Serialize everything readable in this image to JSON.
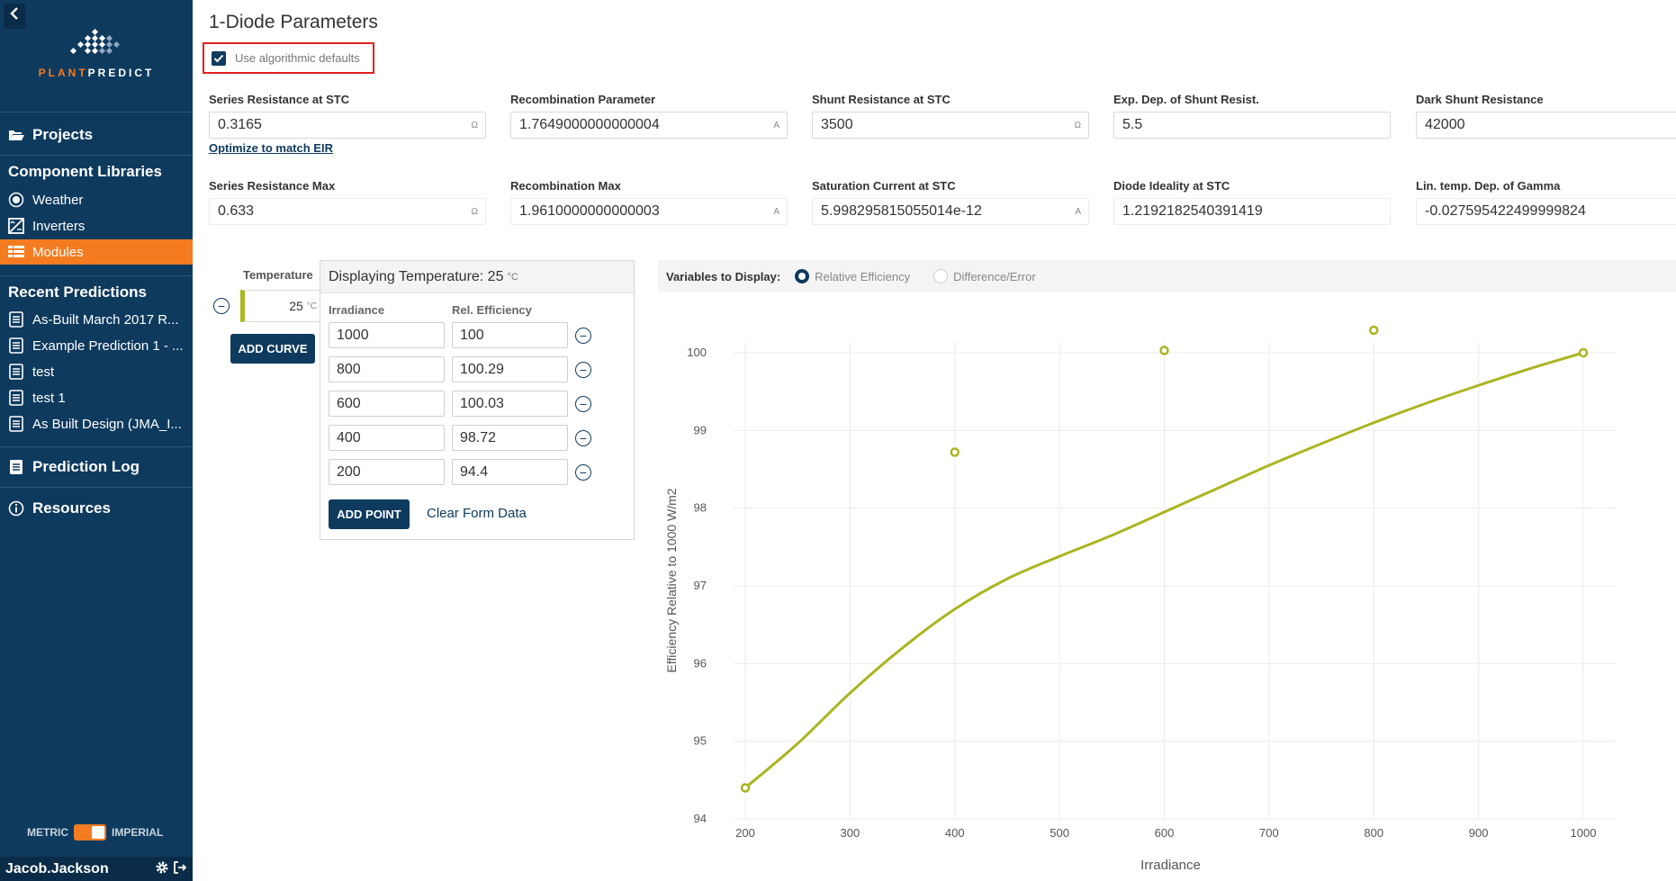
{
  "sidebar": {
    "brand": {
      "part1": "PLANT",
      "part2": "PREDICT"
    },
    "projects": "Projects",
    "component_libraries": "Component Libraries",
    "components": [
      {
        "label": "Weather",
        "icon": "sun-icon"
      },
      {
        "label": "Inverters",
        "icon": "inverter-icon"
      },
      {
        "label": "Modules",
        "icon": "module-grid-icon",
        "active": true
      }
    ],
    "recent_predictions_title": "Recent Predictions",
    "recent_predictions": [
      "As-Built March 2017 R...",
      "Example Prediction 1 - ...",
      "test",
      "test 1",
      "As Built Design (JMA_I..."
    ],
    "prediction_log": "Prediction Log",
    "resources": "Resources",
    "units": {
      "left": "METRIC",
      "right": "IMPERIAL"
    },
    "user": "Jacob.Jackson"
  },
  "main": {
    "title": "1-Diode Parameters",
    "defaults_checkbox": {
      "label": "Use algorithmic defaults",
      "checked": true
    },
    "optimize_link": "Optimize to match EIR",
    "params_row1": [
      {
        "label": "Series Resistance at STC",
        "value": "0.3165",
        "unit": "Ω"
      },
      {
        "label": "Recombination Parameter",
        "value": "1.7649000000000004",
        "unit": "A"
      },
      {
        "label": "Shunt Resistance at STC",
        "value": "3500",
        "unit": "Ω"
      },
      {
        "label": "Exp. Dep. of Shunt Resist.",
        "value": "5.5",
        "unit": ""
      },
      {
        "label": "Dark Shunt Resistance",
        "value": "42000",
        "unit": ""
      }
    ],
    "params_row2": [
      {
        "label": "Series Resistance Max",
        "value": "0.633",
        "unit": "Ω"
      },
      {
        "label": "Recombination Max",
        "value": "1.9610000000000003",
        "unit": "A"
      },
      {
        "label": "Saturation Current at STC",
        "value": "5.998295815055014e-12",
        "unit": "A"
      },
      {
        "label": "Diode Ideality at STC",
        "value": "1.2192182540391419",
        "unit": ""
      },
      {
        "label": "Lin. temp. Dep. of Gamma",
        "value": "-0.027595422499999824",
        "unit": ""
      }
    ],
    "temperature": {
      "header": "Temperature",
      "value": "25",
      "unit": "°C",
      "add_curve": "ADD CURVE"
    },
    "points_panel": {
      "title": "Displaying Temperature: 25",
      "unit": "°C",
      "col_irradiance": "Irradiance",
      "col_efficiency": "Rel. Efficiency",
      "rows": [
        {
          "irradiance": "1000",
          "efficiency": "100"
        },
        {
          "irradiance": "800",
          "efficiency": "100.29"
        },
        {
          "irradiance": "600",
          "efficiency": "100.03"
        },
        {
          "irradiance": "400",
          "efficiency": "98.72"
        },
        {
          "irradiance": "200",
          "efficiency": "94.4"
        }
      ],
      "add_point": "ADD POINT",
      "clear": "Clear Form Data"
    },
    "chart_controls": {
      "label": "Variables to Display:",
      "options": [
        {
          "label": "Relative Efficiency",
          "selected": true
        },
        {
          "label": "Difference/Error",
          "selected": false
        }
      ]
    }
  },
  "chart_data": {
    "type": "scatter",
    "xlabel": "Irradiance",
    "ylabel": "Efficiency Relative to 1000 W/m2",
    "xlim": [
      200,
      1000
    ],
    "ylim": [
      94,
      100
    ],
    "xticks": [
      200,
      300,
      400,
      500,
      600,
      700,
      800,
      900,
      1000
    ],
    "yticks": [
      94,
      95,
      96,
      97,
      98,
      99,
      100
    ],
    "grid": true,
    "color": "#aab521",
    "series": [
      {
        "kind": "points",
        "x": [
          200,
          400,
          600,
          800,
          1000
        ],
        "y": [
          94.4,
          98.72,
          100.03,
          100.29,
          100
        ]
      },
      {
        "kind": "fit-curve",
        "x": [
          200,
          250,
          300,
          350,
          400,
          450,
          500,
          550,
          600,
          650,
          700,
          750,
          800,
          850,
          900,
          950,
          1000
        ],
        "y": [
          94.4,
          94.97,
          95.62,
          96.2,
          96.7,
          97.09,
          97.38,
          97.65,
          97.95,
          98.25,
          98.55,
          98.83,
          99.1,
          99.35,
          99.58,
          99.8,
          100
        ]
      }
    ]
  }
}
